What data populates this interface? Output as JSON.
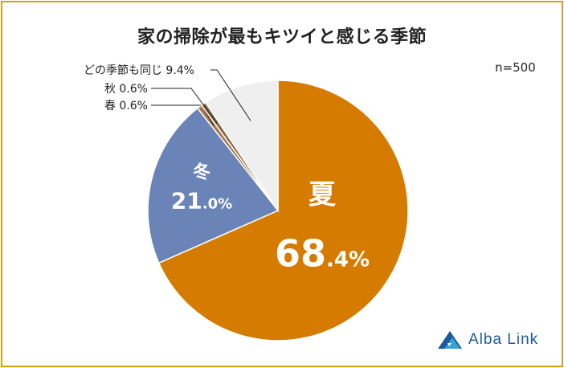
{
  "chart_data": {
    "type": "pie",
    "title": "家の掃除が最もキツイと感じる季節",
    "note": "n=500",
    "slices": [
      {
        "label": "夏",
        "value": 68.4,
        "int_text": "68",
        "dec_text": ".4%",
        "color": "#d47b00",
        "placement": "inside"
      },
      {
        "label": "冬",
        "value": 21.0,
        "int_text": "21",
        "dec_text": ".0%",
        "color": "#6b84b8",
        "placement": "inside"
      },
      {
        "label": "春",
        "value": 0.6,
        "callout_text": "春 0.6%",
        "color": "#a9744a",
        "placement": "callout"
      },
      {
        "label": "秋",
        "value": 0.6,
        "callout_text": "秋 0.6%",
        "color": "#8a6a45",
        "placement": "callout"
      },
      {
        "label": "どの季節も同じ",
        "value": 9.4,
        "callout_text": "どの季節も同じ 9.4%",
        "color": "#efefef",
        "placement": "callout"
      }
    ]
  },
  "branding": {
    "logo_text": "Alba Link"
  }
}
